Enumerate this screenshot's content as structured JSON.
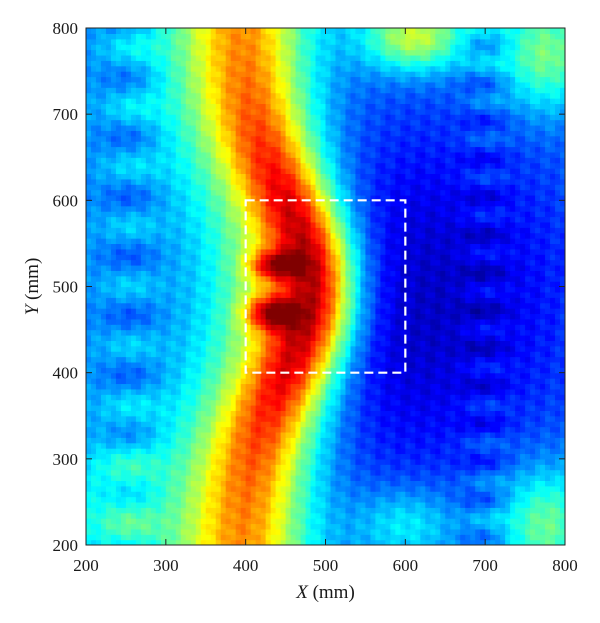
{
  "chart_data": {
    "type": "heatmap",
    "title": "",
    "xlabel": {
      "var": "X",
      "unit": " (mm)"
    },
    "ylabel": {
      "var": "Y",
      "unit": " (mm)"
    },
    "xlim": [
      200,
      800
    ],
    "ylim": [
      200,
      800
    ],
    "xticks": [
      200,
      300,
      400,
      500,
      600,
      700,
      800
    ],
    "yticks": [
      200,
      300,
      400,
      500,
      600,
      700,
      800
    ],
    "colormap": "jet",
    "grid": false,
    "colorbar": false,
    "peaks": [
      {
        "x": 430,
        "y": 470
      },
      {
        "x": 435,
        "y": 525
      }
    ],
    "annotation": {
      "type": "dashed-rectangle",
      "color": "#ffffff",
      "x_range": [
        400,
        600
      ],
      "y_range": [
        400,
        600
      ]
    }
  }
}
